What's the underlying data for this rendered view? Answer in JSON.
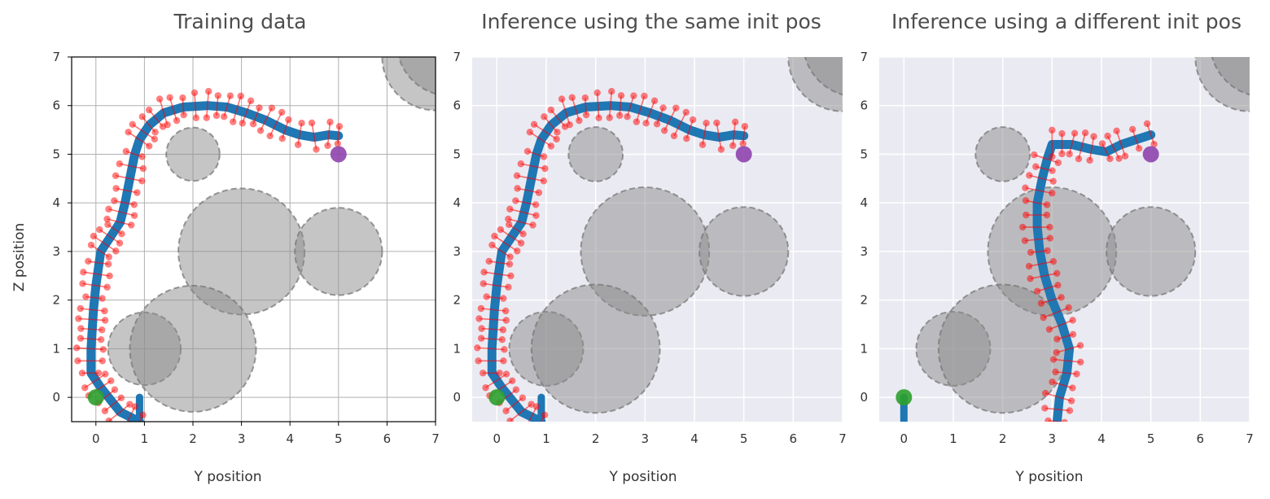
{
  "colors": {
    "trajectory": "#1f77b4",
    "noisy": "#ff0000",
    "start": "#2ca02c",
    "goal": "#8e44ad",
    "obstacle": "#8c8c8c",
    "seaborn_bg": "#eaeaf2"
  },
  "shared": {
    "ylabel": "Z position",
    "xlabel": "Y position"
  },
  "chart_data": [
    {
      "type": "scatter",
      "title": "Training data",
      "xlabel": "Y position",
      "ylabel": "Z position",
      "xlim": [
        -0.5,
        7
      ],
      "ylim": [
        -0.5,
        7
      ],
      "xticks": [
        "0",
        "1",
        "2",
        "3",
        "4",
        "5",
        "6",
        "7"
      ],
      "yticks": [
        "0",
        "1",
        "2",
        "3",
        "4",
        "5",
        "6",
        "7"
      ],
      "style": "classic",
      "grid": true,
      "start": [
        0,
        0
      ],
      "goal": [
        5,
        5
      ],
      "obstacles": [
        [
          3,
          3,
          1.3
        ],
        [
          5,
          3,
          0.9
        ],
        [
          2,
          5,
          0.55
        ],
        [
          1,
          1,
          0.75
        ],
        [
          2,
          1,
          1.3
        ],
        [
          7,
          7,
          1.1
        ],
        [
          7.3,
          7.3,
          1.1
        ]
      ],
      "trajectory": [
        [
          0.9,
          -0.5
        ],
        [
          0.5,
          -0.3
        ],
        [
          0.1,
          0.2
        ],
        [
          -0.1,
          0.5
        ],
        [
          -0.1,
          1
        ],
        [
          -0.05,
          1.8
        ],
        [
          0,
          2.3
        ],
        [
          0.1,
          3.0
        ],
        [
          0.3,
          3.3
        ],
        [
          0.5,
          3.6
        ],
        [
          0.6,
          4.0
        ],
        [
          0.7,
          4.5
        ],
        [
          0.8,
          5.0
        ],
        [
          0.9,
          5.3
        ],
        [
          1.1,
          5.6
        ],
        [
          1.4,
          5.85
        ],
        [
          1.8,
          5.97
        ],
        [
          2.3,
          6.0
        ],
        [
          2.7,
          5.97
        ],
        [
          3.1,
          5.85
        ],
        [
          3.5,
          5.7
        ],
        [
          3.9,
          5.5
        ],
        [
          4.2,
          5.4
        ],
        [
          4.5,
          5.35
        ],
        [
          4.8,
          5.4
        ],
        [
          5.0,
          5.38
        ]
      ],
      "stub": [
        [
          0.9,
          -0.5
        ],
        [
          0.9,
          0.0
        ]
      ]
    },
    {
      "type": "scatter",
      "title": "Inference using the same init pos",
      "xlabel": "Y position",
      "ylabel": "",
      "xlim": [
        -0.5,
        7
      ],
      "ylim": [
        -0.5,
        7
      ],
      "xticks": [
        "0",
        "1",
        "2",
        "3",
        "4",
        "5",
        "6",
        "7"
      ],
      "yticks": [
        "0",
        "1",
        "2",
        "3",
        "4",
        "5",
        "6",
        "7"
      ],
      "style": "seaborn",
      "grid": true,
      "start": [
        0,
        0
      ],
      "goal": [
        5,
        5
      ],
      "obstacles": [
        [
          3,
          3,
          1.3
        ],
        [
          5,
          3,
          0.9
        ],
        [
          2,
          5,
          0.55
        ],
        [
          1,
          1,
          0.75
        ],
        [
          2,
          1,
          1.3
        ],
        [
          7,
          7,
          1.1
        ],
        [
          7.3,
          7.3,
          1.1
        ]
      ],
      "trajectory": [
        [
          0.9,
          -0.5
        ],
        [
          0.5,
          -0.3
        ],
        [
          0.1,
          0.2
        ],
        [
          -0.1,
          0.5
        ],
        [
          -0.1,
          1
        ],
        [
          -0.05,
          1.8
        ],
        [
          0,
          2.3
        ],
        [
          0.1,
          3.0
        ],
        [
          0.3,
          3.3
        ],
        [
          0.5,
          3.6
        ],
        [
          0.6,
          4.0
        ],
        [
          0.7,
          4.5
        ],
        [
          0.8,
          5.0
        ],
        [
          0.9,
          5.3
        ],
        [
          1.1,
          5.6
        ],
        [
          1.4,
          5.85
        ],
        [
          1.8,
          5.97
        ],
        [
          2.3,
          6.0
        ],
        [
          2.7,
          5.97
        ],
        [
          3.1,
          5.85
        ],
        [
          3.5,
          5.7
        ],
        [
          3.9,
          5.5
        ],
        [
          4.2,
          5.4
        ],
        [
          4.5,
          5.35
        ],
        [
          4.8,
          5.4
        ],
        [
          5.0,
          5.38
        ]
      ],
      "stub": [
        [
          0.9,
          -0.5
        ],
        [
          0.9,
          0.0
        ]
      ]
    },
    {
      "type": "scatter",
      "title": "Inference using a different init pos",
      "xlabel": "Y position",
      "ylabel": "",
      "xlim": [
        -0.5,
        7
      ],
      "ylim": [
        -0.5,
        7
      ],
      "xticks": [
        "0",
        "1",
        "2",
        "3",
        "4",
        "5",
        "6",
        "7"
      ],
      "yticks": [
        "0",
        "1",
        "2",
        "3",
        "4",
        "5",
        "6",
        "7"
      ],
      "style": "seaborn",
      "grid": true,
      "start": [
        0,
        0
      ],
      "goal": [
        5,
        5
      ],
      "obstacles": [
        [
          3,
          3,
          1.3
        ],
        [
          5,
          3,
          0.9
        ],
        [
          2,
          5,
          0.55
        ],
        [
          1,
          1,
          0.75
        ],
        [
          2,
          1,
          1.3
        ],
        [
          7,
          7,
          1.1
        ],
        [
          7.3,
          7.3,
          1.1
        ]
      ],
      "trajectory": [
        [
          3.1,
          -0.5
        ],
        [
          3.15,
          0
        ],
        [
          3.3,
          0.5
        ],
        [
          3.35,
          1.0
        ],
        [
          3.2,
          1.5
        ],
        [
          3.0,
          2.0
        ],
        [
          2.85,
          2.5
        ],
        [
          2.75,
          3.0
        ],
        [
          2.7,
          3.5
        ],
        [
          2.7,
          4.0
        ],
        [
          2.8,
          4.5
        ],
        [
          2.9,
          4.9
        ],
        [
          3.0,
          5.2
        ],
        [
          3.4,
          5.2
        ],
        [
          3.8,
          5.1
        ],
        [
          4.1,
          5.05
        ],
        [
          4.4,
          5.2
        ],
        [
          4.7,
          5.3
        ],
        [
          5.0,
          5.4
        ]
      ],
      "stub": [
        [
          0,
          -0.5
        ],
        [
          0,
          0.0
        ]
      ]
    }
  ]
}
